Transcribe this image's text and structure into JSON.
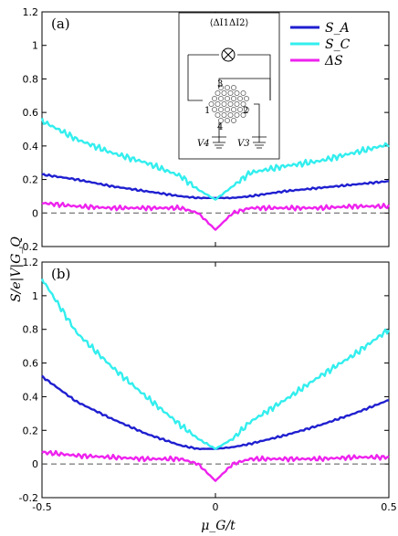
{
  "chart_data": {
    "type": "line",
    "ylabel": "S/e|V|G_Q",
    "xlabel": "μ_G/t",
    "xlim": [
      -0.5,
      0.5
    ],
    "ylim": [
      -0.2,
      1.2
    ],
    "x_ticks": [
      "-0.5",
      "0",
      "0.5"
    ],
    "y_ticks": [
      "-0.2",
      "0",
      "0.2",
      "0.4",
      "0.6",
      "0.8",
      "1",
      "1.2"
    ],
    "legend": {
      "placement": "top-right",
      "entries": [
        {
          "label": "S_A",
          "color": "#1f1fd0"
        },
        {
          "label": "S_C",
          "color": "#33eeee"
        },
        {
          "label": "ΔS",
          "color": "#ee22ee"
        }
      ]
    },
    "inset": {
      "title": "⟨ΔI1ΔI2⟩",
      "terminals": [
        "1",
        "2",
        "3",
        "4"
      ],
      "voltages": [
        "V4",
        "V3"
      ]
    },
    "panels": [
      {
        "label": "(a)",
        "x": [
          -0.5,
          -0.4,
          -0.3,
          -0.2,
          -0.1,
          -0.05,
          0,
          0.05,
          0.1,
          0.2,
          0.3,
          0.4,
          0.5
        ],
        "series": [
          {
            "name": "S_A",
            "color": "#1f1fd0",
            "values": [
              0.23,
              0.2,
              0.16,
              0.13,
              0.1,
              0.09,
              0.09,
              0.09,
              0.1,
              0.13,
              0.15,
              0.17,
              0.19
            ]
          },
          {
            "name": "S_C",
            "color": "#33eeee",
            "values": [
              0.55,
              0.44,
              0.36,
              0.3,
              0.22,
              0.14,
              0.08,
              0.16,
              0.24,
              0.28,
              0.31,
              0.36,
              0.41
            ]
          },
          {
            "name": "ΔS",
            "color": "#ee22ee",
            "values": [
              0.06,
              0.04,
              0.03,
              0.03,
              0.03,
              0.0,
              -0.1,
              0.0,
              0.03,
              0.03,
              0.03,
              0.04,
              0.04
            ]
          }
        ]
      },
      {
        "label": "(b)",
        "x": [
          -0.5,
          -0.4,
          -0.3,
          -0.2,
          -0.1,
          -0.05,
          0,
          0.05,
          0.1,
          0.2,
          0.3,
          0.4,
          0.5
        ],
        "series": [
          {
            "name": "S_A",
            "color": "#1f1fd0",
            "values": [
              0.52,
              0.37,
              0.27,
              0.18,
              0.11,
              0.09,
              0.09,
              0.1,
              0.12,
              0.17,
              0.23,
              0.3,
              0.38
            ]
          },
          {
            "name": "S_C",
            "color": "#33eeee",
            "values": [
              1.1,
              0.78,
              0.58,
              0.4,
              0.23,
              0.15,
              0.09,
              0.15,
              0.25,
              0.38,
              0.52,
              0.65,
              0.8
            ]
          },
          {
            "name": "ΔS",
            "color": "#ee22ee",
            "values": [
              0.07,
              0.05,
              0.04,
              0.03,
              0.03,
              0.0,
              -0.1,
              0.0,
              0.03,
              0.03,
              0.03,
              0.04,
              0.04
            ]
          }
        ]
      }
    ]
  }
}
